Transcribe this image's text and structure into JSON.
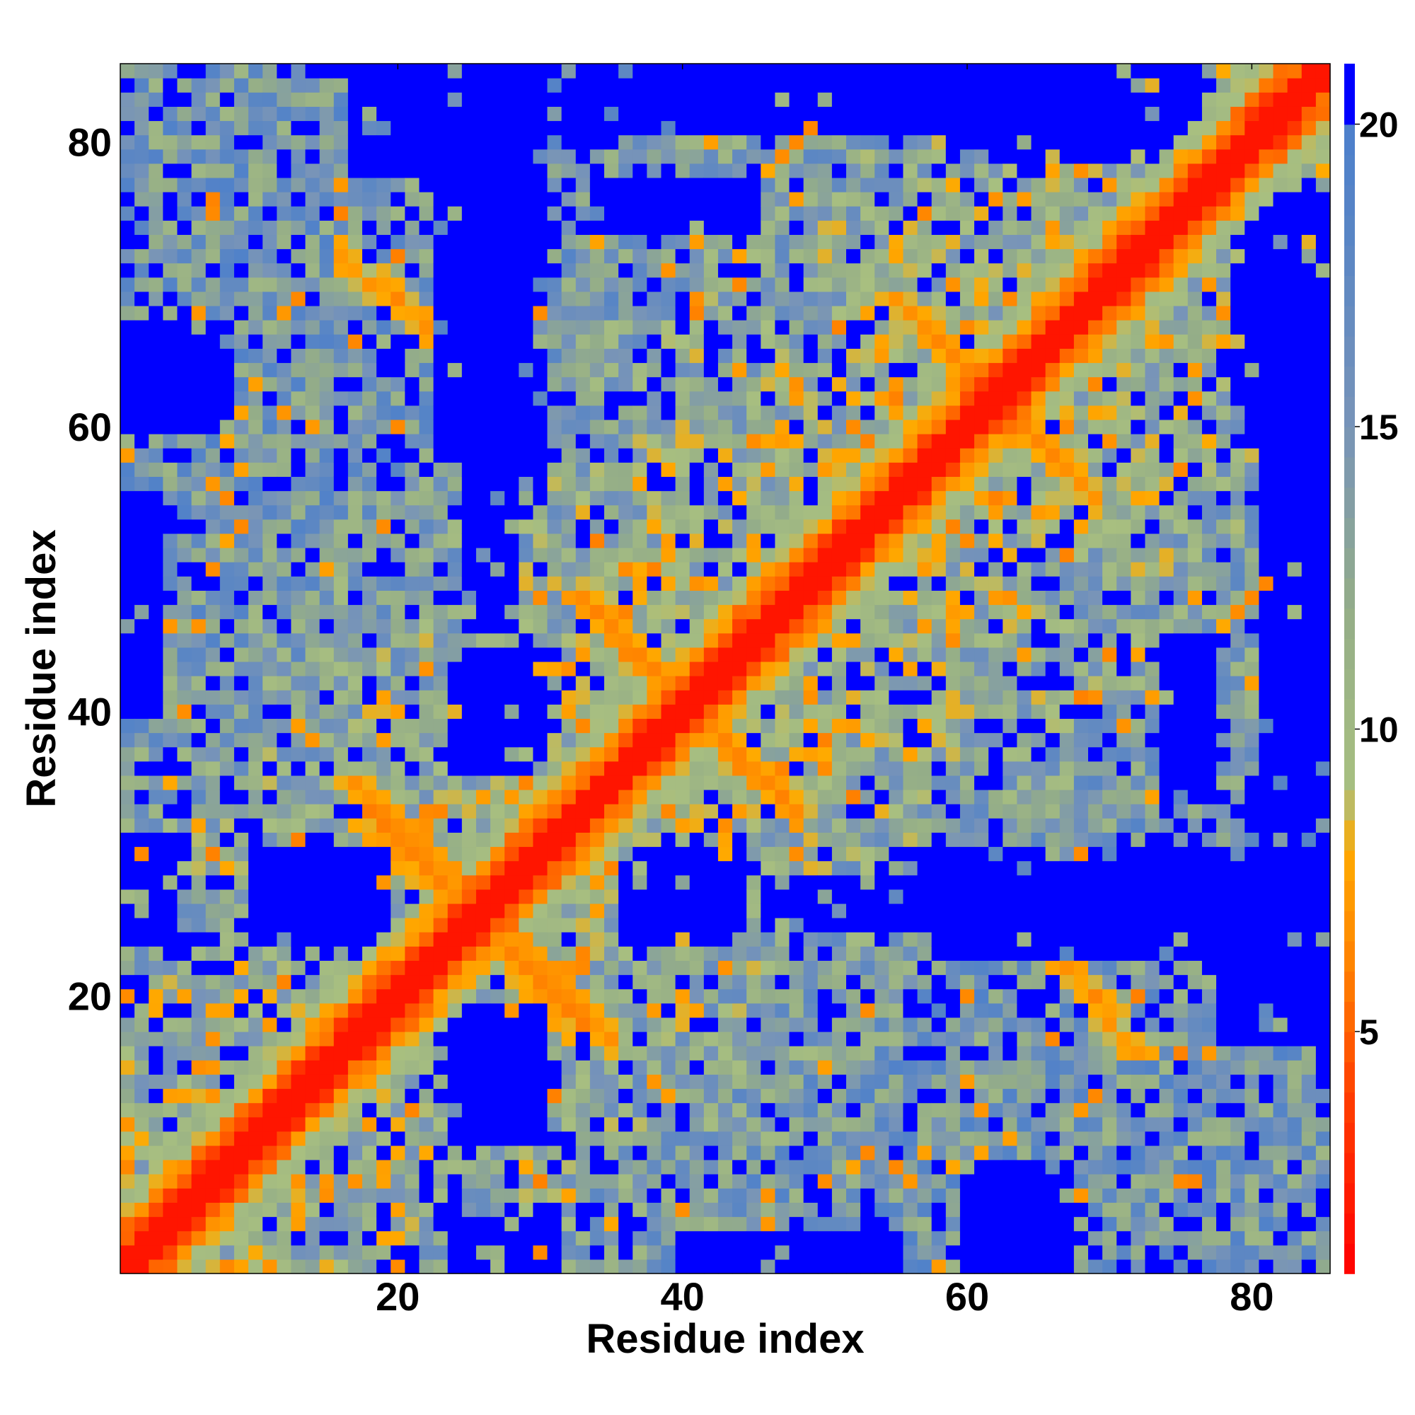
{
  "chart_data": {
    "type": "heatmap",
    "title": "",
    "xlabel": "Residue index",
    "ylabel": "Residue index",
    "n_residues": 85,
    "x_range": [
      1,
      85
    ],
    "y_range": [
      1,
      85
    ],
    "x_ticks": [
      20,
      40,
      60,
      80
    ],
    "y_ticks": [
      20,
      40,
      60,
      80
    ],
    "colorbar": {
      "ticks": [
        5,
        10,
        15,
        20
      ],
      "range": [
        1,
        21
      ],
      "stops": [
        {
          "value": 1,
          "color": "#ff0000"
        },
        {
          "value": 4,
          "color": "#ff4000"
        },
        {
          "value": 6,
          "color": "#ff8000"
        },
        {
          "value": 8,
          "color": "#ffaa00"
        },
        {
          "value": 9,
          "color": "#a8bf80"
        },
        {
          "value": 12,
          "color": "#94ad88"
        },
        {
          "value": 15,
          "color": "#7894b8"
        },
        {
          "value": 18,
          "color": "#5a86c4"
        },
        {
          "value": 20,
          "color": "#4c7fcc"
        },
        {
          "value": 21,
          "color": "#0000ff"
        }
      ]
    },
    "blue_cutoff": 20,
    "matrix_description": "Pairwise residue distance map (symmetric). Diagonal band (|i-j|<=1) red, near-diagonal orange; off-diagonal contacts form cross-shaped orange features at (17-33, 17-33), (34-48, 34-48), (60-72, 55-70). Distant pairs saturate blue.",
    "features": {
      "diagonal_core": {
        "max_offset": 1,
        "value": 2
      },
      "diagonal_shell": [
        {
          "offset": 2,
          "value": 4.5
        },
        {
          "offset": 3,
          "value": 6.5
        },
        {
          "offset": 4,
          "value": 8.5
        },
        {
          "offset": 5,
          "value": 10
        }
      ],
      "contact_lines": [
        {
          "i": [
            17,
            33
          ],
          "j": [
            35,
            18
          ],
          "value": 6.5
        },
        {
          "i": [
            33,
            47
          ],
          "j": [
            48,
            34
          ],
          "value": 6.5
        },
        {
          "i": [
            55,
            66
          ],
          "j": [
            69,
            58
          ],
          "value": 6.8
        },
        {
          "i": [
            67,
            72
          ],
          "j": [
            22,
            16
          ],
          "value": 7
        }
      ],
      "blue_regions": [
        {
          "i": [
            1,
            3
          ],
          "j": [
            40,
            55
          ]
        },
        {
          "i": [
            1,
            7
          ],
          "j": [
            60,
            67
          ]
        },
        {
          "i": [
            1,
            4
          ],
          "j": [
            24,
            31
          ]
        },
        {
          "i": [
            10,
            17
          ],
          "j": [
            24,
            30
          ]
        },
        {
          "i": [
            23,
            30
          ],
          "j": [
            58,
            85
          ]
        },
        {
          "i": [
            24,
            30
          ],
          "j": [
            10,
            19
          ]
        },
        {
          "i": [
            24,
            27
          ],
          "j": [
            36,
            43
          ]
        },
        {
          "i": [
            36,
            44
          ],
          "j": [
            25,
            30
          ]
        },
        {
          "i": [
            46,
            85
          ],
          "j": [
            25,
            28
          ]
        },
        {
          "i": [
            59,
            76
          ],
          "j": [
            79,
            85
          ]
        },
        {
          "i": [
            62,
            66
          ],
          "j": [
            1,
            8
          ]
        },
        {
          "i": [
            81,
            85
          ],
          "j": [
            30,
            68
          ]
        },
        {
          "i": [
            74,
            77
          ],
          "j": [
            34,
            45
          ]
        },
        {
          "i": [
            78,
            85
          ],
          "j": [
            17,
            22
          ]
        }
      ]
    }
  }
}
